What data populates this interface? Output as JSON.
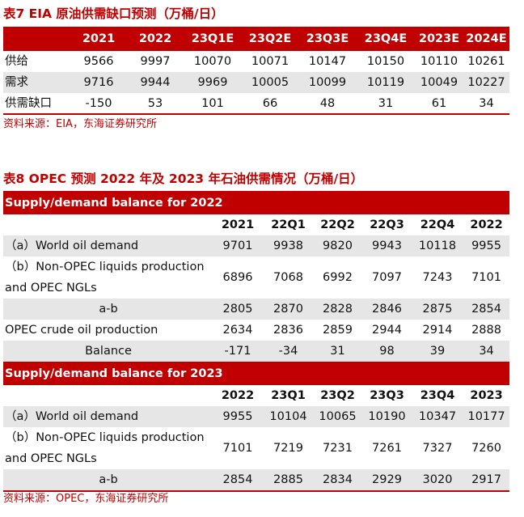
{
  "table7": {
    "title": "表7  EIA 原油供需缺口预测（万桶/日）",
    "headers": [
      "",
      "2021",
      "2022",
      "23Q1E",
      "23Q2E",
      "23Q3E",
      "23Q4E",
      "2023E",
      "2024E"
    ],
    "rows": [
      {
        "label": "供给",
        "values": [
          "9566",
          "9997",
          "10070",
          "10071",
          "10147",
          "10150",
          "10110",
          "10261"
        ]
      },
      {
        "label": "需求",
        "values": [
          "9716",
          "9944",
          "9969",
          "10005",
          "10099",
          "10119",
          "10049",
          "10227"
        ]
      },
      {
        "label": "供需缺口",
        "values": [
          "-150",
          "53",
          "101",
          "66",
          "48",
          "31",
          "61",
          "34"
        ]
      }
    ],
    "source": "资料来源：EIA，东海证券研究所"
  },
  "table8": {
    "title": "表8  OPEC 预测 2022 年及 2023 年石油供需情况（万桶/日）",
    "sections": [
      {
        "band": "Supply/demand balance for 2022",
        "headers": [
          "",
          "2021",
          "22Q1",
          "22Q2",
          "22Q3",
          "22Q4",
          "2022"
        ],
        "rows": [
          {
            "label": "（a）World oil demand",
            "values": [
              "9701",
              "9938",
              "9820",
              "9943",
              "10118",
              "9955"
            ]
          },
          {
            "label": "（b）Non-OPEC liquids production and OPEC NGLs",
            "values": [
              "6896",
              "7068",
              "6992",
              "7097",
              "7243",
              "7101"
            ]
          },
          {
            "label": "a-b",
            "values": [
              "2805",
              "2870",
              "2828",
              "2846",
              "2875",
              "2854"
            ]
          },
          {
            "label": "OPEC crude oil production",
            "values": [
              "2634",
              "2836",
              "2859",
              "2944",
              "2914",
              "2888"
            ]
          },
          {
            "label": "Balance",
            "values": [
              "-171",
              "-34",
              "31",
              "98",
              "39",
              "34"
            ]
          }
        ]
      },
      {
        "band": "Supply/demand balance for 2023",
        "headers": [
          "",
          "2022",
          "23Q1",
          "23Q2",
          "23Q3",
          "23Q4",
          "2023"
        ],
        "rows": [
          {
            "label": "（a）World oil demand",
            "values": [
              "9955",
              "10104",
              "10065",
              "10190",
              "10347",
              "10177"
            ]
          },
          {
            "label": "（b）Non-OPEC liquids production and OPEC NGLs",
            "values": [
              "7101",
              "7219",
              "7231",
              "7261",
              "7327",
              "7260"
            ]
          },
          {
            "label": "a-b",
            "values": [
              "2854",
              "2885",
              "2834",
              "2929",
              "3020",
              "2917"
            ]
          }
        ]
      }
    ],
    "source": "资料来源：OPEC，东海证券研究所"
  },
  "colors": {
    "accent": "#c00000",
    "stripe": "#e6e6e6"
  }
}
